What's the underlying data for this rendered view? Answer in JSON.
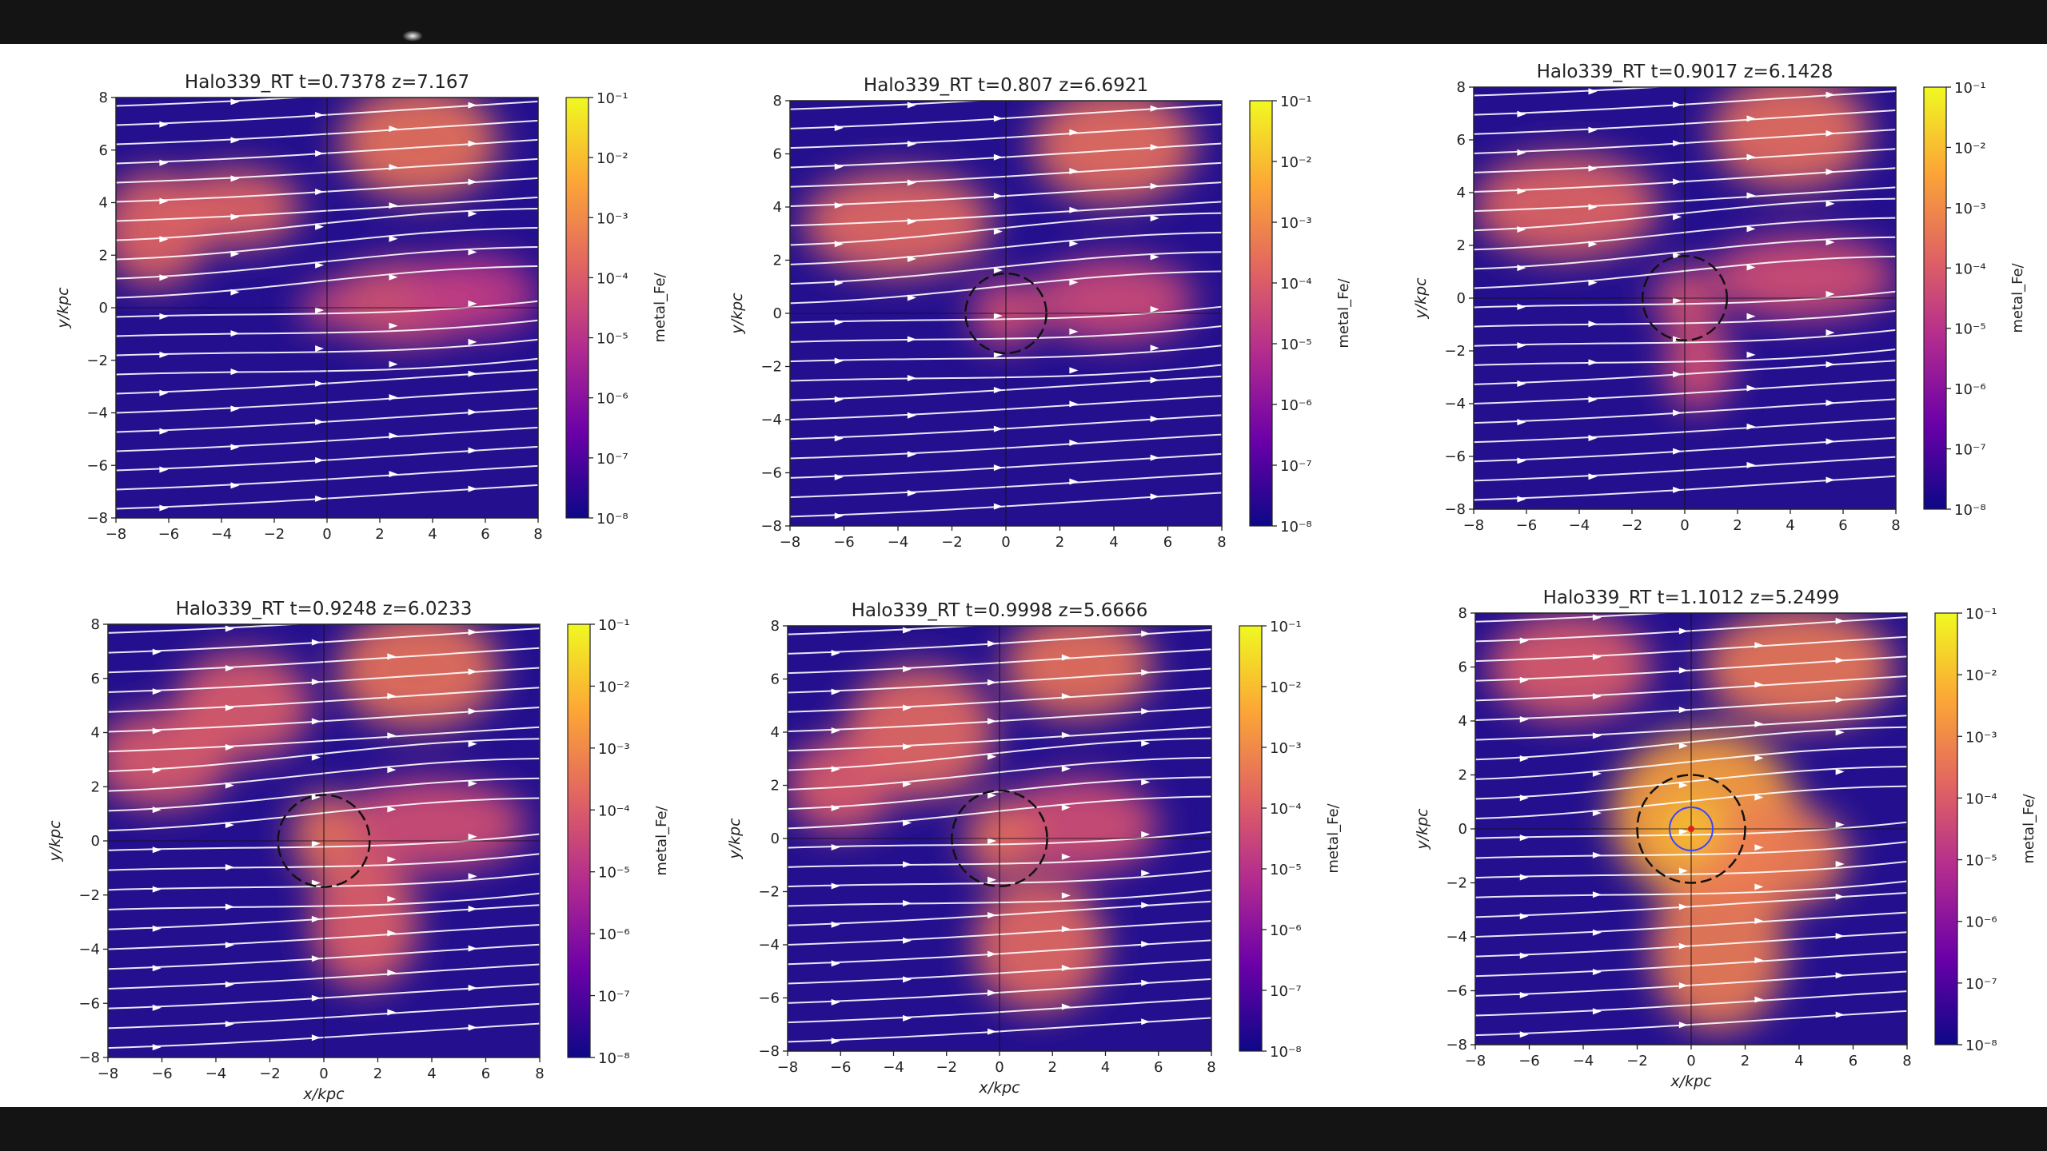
{
  "figure": {
    "colormap": [
      "#0d0887",
      "#6a00a8",
      "#b12a90",
      "#e16462",
      "#fca636",
      "#f0f921"
    ]
  },
  "chart_data": [
    {
      "type": "heatmap",
      "title": "Halo339_RT  t=0.7378 z=7.167",
      "xlabel": "",
      "ylabel": "y/kpc",
      "xlim": [
        -8,
        8
      ],
      "ylim": [
        -8,
        8
      ],
      "xticks": [
        "−8",
        "−6",
        "−4",
        "−2",
        "0",
        "2",
        "4",
        "6",
        "8"
      ],
      "yticks": [
        "−8",
        "−6",
        "−4",
        "−2",
        "0",
        "2",
        "4",
        "6",
        "8"
      ],
      "colorbar": {
        "label": "metal_Fe/",
        "scale": "log",
        "min": 1e-08,
        "max": 0.1,
        "ticks": [
          "10⁻¹",
          "10⁻²",
          "10⁻³",
          "10⁻⁴",
          "10⁻⁵",
          "10⁻⁶",
          "10⁻⁷",
          "10⁻⁸"
        ]
      },
      "overlays": "white velocity streamlines flowing left to right; black crosshair at origin",
      "blobs": [
        {
          "x": 3.5,
          "y": 6.3,
          "rx": 3.0,
          "ry": 2.2,
          "log_value": -3.5
        },
        {
          "x": -6.5,
          "y": 3.0,
          "rx": 2.0,
          "ry": 2.2,
          "log_value": -3.8
        },
        {
          "x": -3.5,
          "y": 3.8,
          "rx": 2.5,
          "ry": 1.5,
          "log_value": -3.8
        },
        {
          "x": 3.0,
          "y": 0.2,
          "rx": 3.0,
          "ry": 1.6,
          "log_value": -4.2
        },
        {
          "x": 5.5,
          "y": 0.5,
          "rx": 2.5,
          "ry": 1.5,
          "log_value": -4.8
        },
        {
          "x": -0.2,
          "y": 0.0,
          "rx": 0.8,
          "ry": 0.8,
          "log_value": -4.5
        }
      ],
      "circles_r": []
    },
    {
      "type": "heatmap",
      "title": "Halo339_RT  t=0.807 z=6.6921",
      "xlabel": "",
      "ylabel": "y/kpc",
      "xlim": [
        -8,
        8
      ],
      "ylim": [
        -8,
        8
      ],
      "xticks": [
        "−8",
        "−6",
        "−4",
        "−2",
        "0",
        "2",
        "4",
        "6",
        "8"
      ],
      "yticks": [
        "−8",
        "−6",
        "−4",
        "−2",
        "0",
        "2",
        "4",
        "6",
        "8"
      ],
      "colorbar": {
        "label": "metal_Fe/",
        "scale": "log",
        "min": 1e-08,
        "max": 0.1,
        "ticks": [
          "10⁻¹",
          "10⁻²",
          "10⁻³",
          "10⁻⁴",
          "10⁻⁵",
          "10⁻⁶",
          "10⁻⁷",
          "10⁻⁸"
        ]
      },
      "overlays": "white velocity streamlines flowing left to right; black crosshair at origin; dark circle",
      "blobs": [
        {
          "x": 4.0,
          "y": 6.3,
          "rx": 3.0,
          "ry": 2.2,
          "log_value": -3.6
        },
        {
          "x": -4.0,
          "y": 3.4,
          "rx": 3.5,
          "ry": 2.0,
          "log_value": -3.7
        },
        {
          "x": 4.0,
          "y": 0.5,
          "rx": 3.0,
          "ry": 1.6,
          "log_value": -4.4
        },
        {
          "x": 0.0,
          "y": 0.0,
          "rx": 1.3,
          "ry": 1.3,
          "log_value": -4.3
        }
      ],
      "circles_r": [
        1.5
      ]
    },
    {
      "type": "heatmap",
      "title": "Halo339_RT  t=0.9017 z=6.1428",
      "xlabel": "",
      "ylabel": "y/kpc",
      "xlim": [
        -8,
        8
      ],
      "ylim": [
        -8,
        8
      ],
      "xticks": [
        "−8",
        "−6",
        "−4",
        "−2",
        "0",
        "2",
        "4",
        "6",
        "8"
      ],
      "yticks": [
        "−8",
        "−6",
        "−4",
        "−2",
        "0",
        "2",
        "4",
        "6",
        "8"
      ],
      "colorbar": {
        "label": "metal_Fe/",
        "scale": "log",
        "min": 1e-08,
        "max": 0.1,
        "ticks": [
          "10⁻¹",
          "10⁻²",
          "10⁻³",
          "10⁻⁴",
          "10⁻⁵",
          "10⁻⁶",
          "10⁻⁷",
          "10⁻⁸"
        ]
      },
      "overlays": "white velocity streamlines flowing left to right; black crosshair at origin; dark circle",
      "blobs": [
        {
          "x": 4.0,
          "y": 6.3,
          "rx": 3.0,
          "ry": 2.2,
          "log_value": -3.6
        },
        {
          "x": -4.5,
          "y": 3.5,
          "rx": 3.5,
          "ry": 2.0,
          "log_value": -3.8
        },
        {
          "x": 4.5,
          "y": 0.8,
          "rx": 3.5,
          "ry": 1.6,
          "log_value": -4.3
        },
        {
          "x": 0.5,
          "y": -2.5,
          "rx": 1.3,
          "ry": 1.8,
          "log_value": -4.3
        },
        {
          "x": 0.0,
          "y": 0.0,
          "rx": 1.2,
          "ry": 1.2,
          "log_value": -4.2
        }
      ],
      "circles_r": [
        1.6
      ]
    },
    {
      "type": "heatmap",
      "title": "Halo339_RT  t=0.9248 z=6.0233",
      "xlabel": "x/kpc",
      "ylabel": "y/kpc",
      "xlim": [
        -8,
        8
      ],
      "ylim": [
        -8,
        8
      ],
      "xticks": [
        "−8",
        "−6",
        "−4",
        "−2",
        "0",
        "2",
        "4",
        "6",
        "8"
      ],
      "yticks": [
        "−8",
        "−6",
        "−4",
        "−2",
        "0",
        "2",
        "4",
        "6",
        "8"
      ],
      "colorbar": {
        "label": "metal_Fe/",
        "scale": "log",
        "min": 1e-08,
        "max": 0.1,
        "ticks": [
          "10⁻¹",
          "10⁻²",
          "10⁻³",
          "10⁻⁴",
          "10⁻⁵",
          "10⁻⁶",
          "10⁻⁷",
          "10⁻⁸"
        ]
      },
      "overlays": "white velocity streamlines flowing left to right; black crosshair at origin; dark circle",
      "blobs": [
        {
          "x": 3.5,
          "y": 6.3,
          "rx": 3.0,
          "ry": 2.2,
          "log_value": -3.5
        },
        {
          "x": -3.0,
          "y": 5.0,
          "rx": 2.5,
          "ry": 2.0,
          "log_value": -4.0
        },
        {
          "x": -6.0,
          "y": 3.0,
          "rx": 2.5,
          "ry": 1.8,
          "log_value": -4.0
        },
        {
          "x": 4.0,
          "y": 0.6,
          "rx": 3.5,
          "ry": 1.7,
          "log_value": -4.3
        },
        {
          "x": 1.5,
          "y": -3.0,
          "rx": 2.0,
          "ry": 2.5,
          "log_value": -3.9
        },
        {
          "x": 0.0,
          "y": 0.2,
          "rx": 1.2,
          "ry": 1.6,
          "log_value": -3.5
        }
      ],
      "circles_r": [
        1.7
      ]
    },
    {
      "type": "heatmap",
      "title": "Halo339_RT  t=0.9998 z=5.6666",
      "xlabel": "x/kpc",
      "ylabel": "y/kpc",
      "xlim": [
        -8,
        8
      ],
      "ylim": [
        -8,
        8
      ],
      "xticks": [
        "−8",
        "−6",
        "−4",
        "−2",
        "0",
        "2",
        "4",
        "6",
        "8"
      ],
      "yticks": [
        "−8",
        "−6",
        "−4",
        "−2",
        "0",
        "2",
        "4",
        "6",
        "8"
      ],
      "colorbar": {
        "label": "metal_Fe/",
        "scale": "log",
        "min": 1e-08,
        "max": 0.1,
        "ticks": [
          "10⁻¹",
          "10⁻²",
          "10⁻³",
          "10⁻⁴",
          "10⁻⁵",
          "10⁻⁶",
          "10⁻⁷",
          "10⁻⁸"
        ]
      },
      "overlays": "white velocity streamlines flowing left to right; black crosshair at origin; dark circle",
      "blobs": [
        {
          "x": 3.0,
          "y": 6.5,
          "rx": 2.8,
          "ry": 2.0,
          "log_value": -3.5
        },
        {
          "x": -3.0,
          "y": 4.0,
          "rx": 2.8,
          "ry": 2.5,
          "log_value": -3.7
        },
        {
          "x": -6.0,
          "y": 2.0,
          "rx": 2.0,
          "ry": 1.8,
          "log_value": -4.0
        },
        {
          "x": 3.0,
          "y": 0.5,
          "rx": 3.0,
          "ry": 1.8,
          "log_value": -4.3
        },
        {
          "x": 1.5,
          "y": -4.0,
          "rx": 2.5,
          "ry": 2.5,
          "log_value": -3.7
        },
        {
          "x": 0.0,
          "y": 0.0,
          "rx": 1.3,
          "ry": 1.5,
          "log_value": -3.6
        }
      ],
      "circles_r": [
        1.8
      ]
    },
    {
      "type": "heatmap",
      "title": "Halo339_RT  t=1.1012 z=5.2499",
      "xlabel": "x/kpc",
      "ylabel": "y/kpc",
      "xlim": [
        -8,
        8
      ],
      "ylim": [
        -8,
        8
      ],
      "xticks": [
        "−8",
        "−6",
        "−4",
        "−2",
        "0",
        "2",
        "4",
        "6",
        "8"
      ],
      "yticks": [
        "−8",
        "−6",
        "−4",
        "−2",
        "0",
        "2",
        "4",
        "6",
        "8"
      ],
      "colorbar": {
        "label": "metal_Fe/",
        "scale": "log",
        "min": 1e-08,
        "max": 0.1,
        "ticks": [
          "10⁻¹",
          "10⁻²",
          "10⁻³",
          "10⁻⁴",
          "10⁻⁵",
          "10⁻⁶",
          "10⁻⁷",
          "10⁻⁸"
        ]
      },
      "overlays": "white velocity streamlines flowing left to right; black crosshair at origin; dark circle and blue inner circle",
      "blobs": [
        {
          "x": 4.0,
          "y": 6.0,
          "rx": 3.5,
          "ry": 2.2,
          "log_value": -3.4
        },
        {
          "x": -4.5,
          "y": 6.0,
          "rx": 3.0,
          "ry": 2.0,
          "log_value": -4.0
        },
        {
          "x": 0.5,
          "y": 0.5,
          "rx": 3.5,
          "ry": 3.2,
          "log_value": -2.5
        },
        {
          "x": 3.0,
          "y": -1.0,
          "rx": 2.8,
          "ry": 2.0,
          "log_value": -3.3
        },
        {
          "x": 1.0,
          "y": -4.5,
          "rx": 2.5,
          "ry": 3.0,
          "log_value": -3.3
        },
        {
          "x": 0.0,
          "y": 0.0,
          "rx": 1.2,
          "ry": 1.2,
          "log_value": -2.0
        }
      ],
      "circles_r": [
        2.0,
        0.8
      ]
    }
  ]
}
